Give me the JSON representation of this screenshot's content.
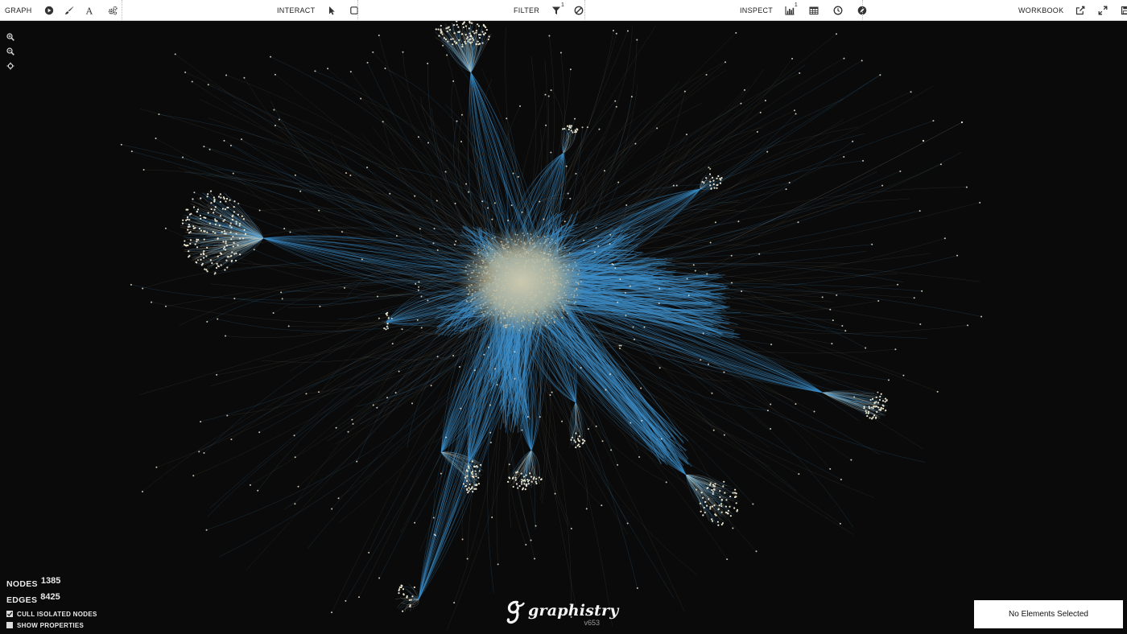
{
  "toolbar": {
    "graph": {
      "label": "GRAPH"
    },
    "interact": {
      "label": "INTERACT"
    },
    "filter": {
      "label": "FILTER",
      "badge": "1"
    },
    "inspect": {
      "label": "INSPECT",
      "badge": "1"
    },
    "workbook": {
      "label": "WORKBOOK"
    }
  },
  "stats": {
    "nodes_label": "NODES",
    "nodes_value": "1385",
    "edges_label": "EDGES",
    "edges_value": "8425",
    "cull_label": "CULL ISOLATED NODES",
    "cull_checked": true,
    "props_label": "SHOW PROPERTIES",
    "props_checked": false
  },
  "logo": {
    "text": "graphistry",
    "version": "v653"
  },
  "selection": {
    "text": "No Elements Selected"
  },
  "colors": {
    "background": "#0a0a0a",
    "edge_blue": "#3d8fcb",
    "node": "#e9e4cf",
    "core": "#c9c2a4"
  },
  "icons": [
    "play-circle-icon",
    "brush-icon",
    "font-icon",
    "settings-gears-icon",
    "pointer-icon",
    "square-select-icon",
    "filter-funnel-icon",
    "exclude-circle-icon",
    "histogram-icon",
    "table-icon",
    "clock-icon",
    "compass-icon",
    "external-link-icon",
    "fullscreen-icon",
    "save-icon",
    "zoom-in-icon",
    "zoom-out-icon",
    "center-icon"
  ]
}
